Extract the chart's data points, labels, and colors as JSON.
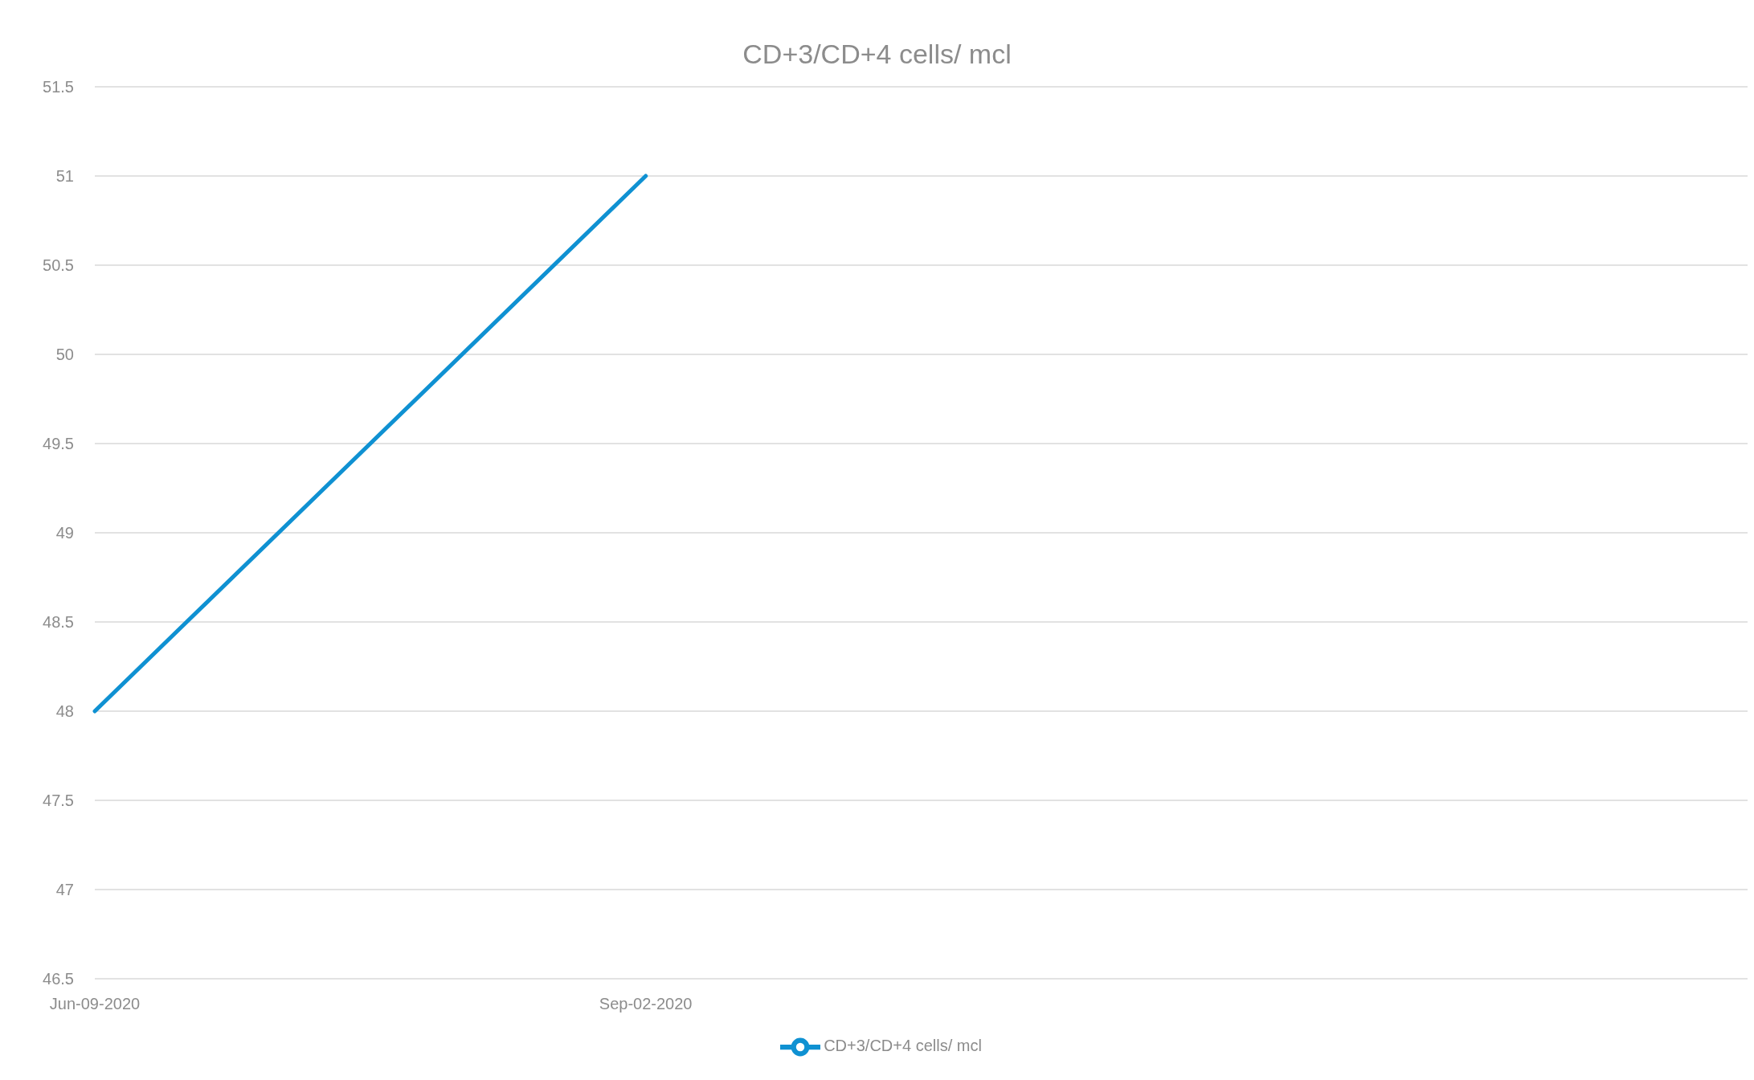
{
  "chart_data": {
    "type": "line",
    "title": "CD+3/CD+4 cells/ mcl",
    "categories": [
      "Jun-09-2020",
      "Sep-02-2020",
      null,
      null
    ],
    "series": [
      {
        "name": "CD+3/CD+4 cells/ mcl",
        "color": "#0f91d2",
        "values": [
          48,
          51,
          null,
          null
        ]
      }
    ],
    "ylim": [
      46.5,
      51.5
    ],
    "yticks": [
      46.5,
      47,
      47.5,
      48,
      48.5,
      49,
      49.5,
      50,
      50.5,
      51,
      51.5
    ],
    "grid": "y",
    "legend": "bottom",
    "marker": "none",
    "line_style": "solid"
  }
}
